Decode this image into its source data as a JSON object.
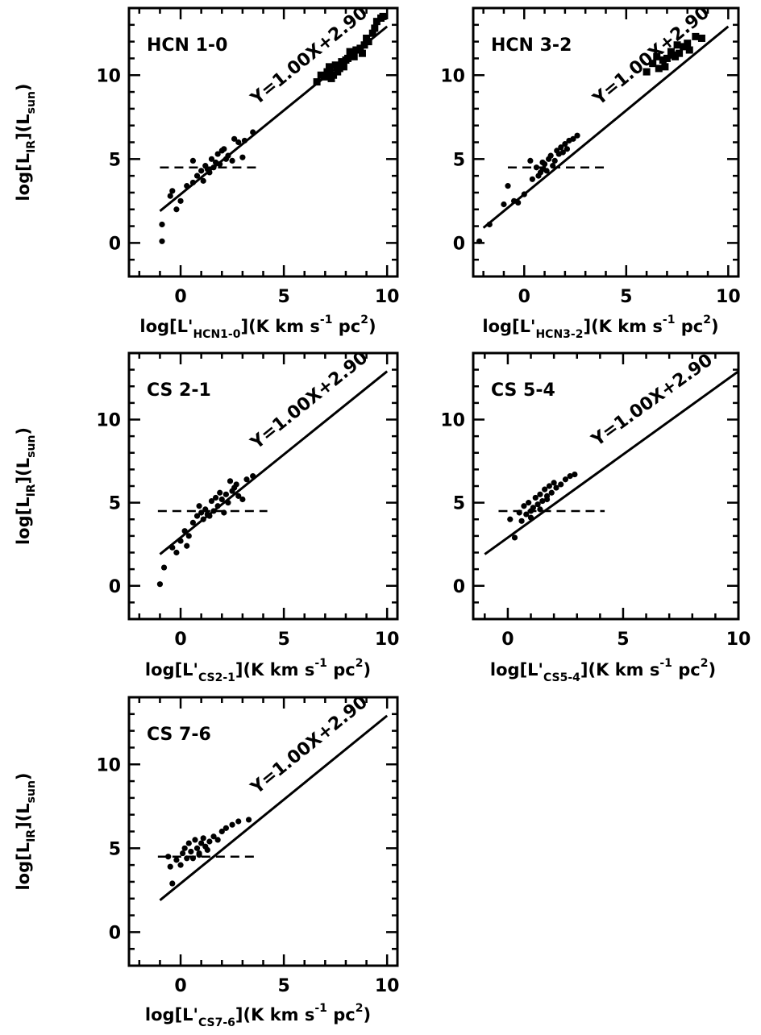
{
  "chart_data": [
    {
      "type": "scatter",
      "panel_label": "HCN 1-0",
      "equation": "Y=1.00X+2.90",
      "xlabel": {
        "pre": "log[L'",
        "sub": "HCN1-0",
        "post": "](K km s",
        "sup1": "-1",
        "mid": " pc",
        "sup2": "2",
        "end": ")"
      },
      "ylabel": {
        "pre": "log[L",
        "sub1": "IR",
        "mid": "](L",
        "sub2": "sun",
        "end": ")"
      },
      "xlim": [
        -2.5,
        10.5
      ],
      "ylim": [
        -2,
        14
      ],
      "xticks": [
        "0",
        "5",
        "10"
      ],
      "yticks": [
        "0",
        "5",
        "10"
      ],
      "fit": {
        "slope": 1.0,
        "intercept": 2.9,
        "x_range": [
          -1,
          10
        ]
      },
      "threshold": {
        "y": 4.5,
        "x_range": [
          -1,
          3.7
        ]
      },
      "series": [
        {
          "marker": "circle",
          "points": [
            [
              -0.9,
              0.1
            ],
            [
              -0.9,
              1.1
            ],
            [
              -0.5,
              2.8
            ],
            [
              -0.4,
              3.1
            ],
            [
              -0.2,
              2.0
            ],
            [
              0,
              2.5
            ],
            [
              0.3,
              3.4
            ],
            [
              0.6,
              3.6
            ],
            [
              0.8,
              4.0
            ],
            [
              1.0,
              4.3
            ],
            [
              1.1,
              3.7
            ],
            [
              1.2,
              4.6
            ],
            [
              1.4,
              4.2
            ],
            [
              1.5,
              5.0
            ],
            [
              1.6,
              4.5
            ],
            [
              1.7,
              4.8
            ],
            [
              1.8,
              5.3
            ],
            [
              1.9,
              4.7
            ],
            [
              2.0,
              5.5
            ],
            [
              2.2,
              5.0
            ],
            [
              2.3,
              5.2
            ],
            [
              2.5,
              4.9
            ],
            [
              2.6,
              6.2
            ],
            [
              2.8,
              6.0
            ],
            [
              3.0,
              5.1
            ],
            [
              3.1,
              6.1
            ],
            [
              3.5,
              6.6
            ],
            [
              0.6,
              4.9
            ],
            [
              1.3,
              4.4
            ],
            [
              2.1,
              5.6
            ]
          ]
        },
        {
          "marker": "square",
          "points": [
            [
              6.6,
              9.6
            ],
            [
              6.8,
              10.0
            ],
            [
              7.0,
              9.9
            ],
            [
              7.1,
              10.2
            ],
            [
              7.2,
              10.5
            ],
            [
              7.3,
              9.8
            ],
            [
              7.4,
              10.0
            ],
            [
              7.5,
              10.6
            ],
            [
              7.6,
              10.2
            ],
            [
              7.7,
              10.4
            ],
            [
              7.8,
              10.8
            ],
            [
              7.9,
              10.5
            ],
            [
              8.0,
              10.9
            ],
            [
              8.1,
              11.0
            ],
            [
              8.3,
              11.2
            ],
            [
              8.4,
              11.1
            ],
            [
              8.5,
              11.5
            ],
            [
              8.7,
              11.6
            ],
            [
              8.9,
              11.8
            ],
            [
              9.0,
              12.2
            ],
            [
              9.1,
              12.0
            ],
            [
              9.3,
              12.5
            ],
            [
              9.4,
              12.8
            ],
            [
              9.5,
              13.2
            ],
            [
              9.7,
              13.4
            ],
            [
              9.8,
              13.5
            ],
            [
              8.2,
              11.4
            ],
            [
              7.2,
              10.3
            ],
            [
              8.8,
              11.3
            ]
          ]
        }
      ]
    },
    {
      "type": "scatter",
      "panel_label": "HCN 3-2",
      "equation": "Y=1.00X+2.90",
      "xlabel": {
        "pre": "log[L'",
        "sub": "HCN3-2",
        "post": "](K km s",
        "sup1": "-1",
        "mid": " pc",
        "sup2": "2",
        "end": ")"
      },
      "ylabel": null,
      "xlim": [
        -2.5,
        10.5
      ],
      "ylim": [
        -2,
        14
      ],
      "xticks": [
        "0",
        "5",
        "10"
      ],
      "yticks": [
        "0",
        "5",
        "10"
      ],
      "fit": {
        "slope": 1.0,
        "intercept": 2.9,
        "x_range": [
          -2,
          10
        ]
      },
      "threshold": {
        "y": 4.5,
        "x_range": [
          -0.8,
          4.1
        ]
      },
      "series": [
        {
          "marker": "circle",
          "points": [
            [
              -2.2,
              0.1
            ],
            [
              -1.7,
              1.1
            ],
            [
              -1.0,
              2.3
            ],
            [
              -0.8,
              3.4
            ],
            [
              -0.5,
              2.5
            ],
            [
              -0.3,
              2.4
            ],
            [
              0,
              2.9
            ],
            [
              0.4,
              3.8
            ],
            [
              0.6,
              4.5
            ],
            [
              0.7,
              4.0
            ],
            [
              0.8,
              4.2
            ],
            [
              0.9,
              4.4
            ],
            [
              1.0,
              4.7
            ],
            [
              1.1,
              4.3
            ],
            [
              1.2,
              5.0
            ],
            [
              1.3,
              5.2
            ],
            [
              1.5,
              4.9
            ],
            [
              1.6,
              5.5
            ],
            [
              1.7,
              5.3
            ],
            [
              1.8,
              5.7
            ],
            [
              2.0,
              5.9
            ],
            [
              2.1,
              5.6
            ],
            [
              2.2,
              6.1
            ],
            [
              2.4,
              6.2
            ],
            [
              2.6,
              6.4
            ],
            [
              0.3,
              4.9
            ],
            [
              1.4,
              4.6
            ],
            [
              1.9,
              5.4
            ],
            [
              0.9,
              4.8
            ]
          ]
        },
        {
          "marker": "square",
          "points": [
            [
              6.0,
              10.2
            ],
            [
              6.3,
              10.7
            ],
            [
              6.5,
              11.1
            ],
            [
              6.6,
              10.4
            ],
            [
              6.8,
              10.9
            ],
            [
              6.9,
              10.5
            ],
            [
              7.0,
              11.0
            ],
            [
              7.2,
              11.4
            ],
            [
              7.3,
              11.2
            ],
            [
              7.5,
              11.8
            ],
            [
              7.6,
              11.3
            ],
            [
              7.8,
              11.7
            ],
            [
              8.0,
              11.9
            ],
            [
              8.1,
              11.5
            ],
            [
              8.4,
              12.3
            ],
            [
              8.7,
              12.2
            ],
            [
              7.4,
              11.1
            ]
          ]
        }
      ]
    },
    {
      "type": "scatter",
      "panel_label": "CS 2-1",
      "equation": "Y=1.00X+2.90",
      "xlabel": {
        "pre": "log[L'",
        "sub": "CS2-1",
        "post": "](K km s",
        "sup1": "-1",
        "mid": " pc",
        "sup2": "2",
        "end": ")"
      },
      "ylabel": {
        "pre": "log[L",
        "sub1": "IR",
        "mid": "](L",
        "sub2": "sun",
        "end": ")"
      },
      "xlim": [
        -2.5,
        10.5
      ],
      "ylim": [
        -2,
        14
      ],
      "xticks": [
        "0",
        "5",
        "10"
      ],
      "yticks": [
        "0",
        "5",
        "10"
      ],
      "fit": {
        "slope": 1.0,
        "intercept": 2.9,
        "x_range": [
          -1,
          10
        ]
      },
      "threshold": {
        "y": 4.5,
        "x_range": [
          -1.1,
          4.2
        ]
      },
      "series": [
        {
          "marker": "circle",
          "points": [
            [
              -1.0,
              0.1
            ],
            [
              -0.8,
              1.1
            ],
            [
              -0.4,
              2.3
            ],
            [
              -0.2,
              2.0
            ],
            [
              0,
              2.7
            ],
            [
              0.2,
              3.3
            ],
            [
              0.3,
              2.4
            ],
            [
              0.4,
              3.0
            ],
            [
              0.6,
              3.8
            ],
            [
              0.8,
              4.2
            ],
            [
              0.9,
              4.8
            ],
            [
              1.0,
              4.4
            ],
            [
              1.1,
              4.0
            ],
            [
              1.2,
              4.6
            ],
            [
              1.4,
              4.2
            ],
            [
              1.5,
              5.1
            ],
            [
              1.6,
              4.5
            ],
            [
              1.7,
              5.3
            ],
            [
              1.8,
              4.8
            ],
            [
              2.0,
              5.2
            ],
            [
              2.1,
              4.4
            ],
            [
              2.2,
              5.5
            ],
            [
              2.3,
              5.0
            ],
            [
              2.4,
              6.3
            ],
            [
              2.6,
              5.9
            ],
            [
              2.7,
              6.1
            ],
            [
              2.8,
              5.4
            ],
            [
              3.0,
              5.2
            ],
            [
              3.2,
              6.4
            ],
            [
              3.5,
              6.6
            ],
            [
              1.3,
              4.3
            ],
            [
              1.9,
              5.6
            ],
            [
              2.5,
              5.7
            ]
          ]
        }
      ]
    },
    {
      "type": "scatter",
      "panel_label": "CS 5-4",
      "equation": "Y=1.00X+2.90",
      "xlabel": {
        "pre": "log[L'",
        "sub": "CS5-4",
        "post": "](K km s",
        "sup1": "-1",
        "mid": " pc",
        "sup2": "2",
        "end": ")"
      },
      "ylabel": null,
      "xlim": [
        -1.5,
        10
      ],
      "ylim": [
        -2,
        14
      ],
      "xticks": [
        "0",
        "5",
        "10"
      ],
      "yticks": [
        "0",
        "5",
        "10"
      ],
      "fit": {
        "slope": 1.0,
        "intercept": 2.9,
        "x_range": [
          -1,
          10
        ]
      },
      "threshold": {
        "y": 4.5,
        "x_range": [
          -0.4,
          4.2
        ]
      },
      "series": [
        {
          "marker": "circle",
          "points": [
            [
              0.1,
              4.0
            ],
            [
              0.3,
              2.9
            ],
            [
              0.5,
              4.4
            ],
            [
              0.6,
              3.9
            ],
            [
              0.7,
              4.8
            ],
            [
              0.8,
              4.3
            ],
            [
              0.9,
              5.0
            ],
            [
              1.0,
              4.5
            ],
            [
              1.1,
              4.7
            ],
            [
              1.2,
              5.3
            ],
            [
              1.3,
              4.9
            ],
            [
              1.4,
              5.5
            ],
            [
              1.5,
              5.1
            ],
            [
              1.6,
              5.8
            ],
            [
              1.7,
              5.4
            ],
            [
              1.8,
              6.0
            ],
            [
              1.9,
              5.6
            ],
            [
              2.0,
              6.2
            ],
            [
              2.1,
              5.9
            ],
            [
              2.3,
              6.1
            ],
            [
              2.5,
              6.4
            ],
            [
              2.7,
              6.6
            ],
            [
              2.9,
              6.7
            ],
            [
              1.0,
              4.1
            ],
            [
              1.4,
              4.6
            ],
            [
              1.7,
              5.2
            ]
          ]
        }
      ]
    },
    {
      "type": "scatter",
      "panel_label": "CS 7-6",
      "equation": "Y=1.00X+2.90",
      "xlabel": {
        "pre": "log[L'",
        "sub": "CS7-6",
        "post": "](K km s",
        "sup1": "-1",
        "mid": " pc",
        "sup2": "2",
        "end": ")"
      },
      "ylabel": {
        "pre": "log[L",
        "sub1": "IR",
        "mid": "](L",
        "sub2": "sun",
        "end": ")"
      },
      "xlim": [
        -2.5,
        10.5
      ],
      "ylim": [
        -2,
        14
      ],
      "xticks": [
        "0",
        "5",
        "10"
      ],
      "yticks": [
        "0",
        "5",
        "10"
      ],
      "fit": {
        "slope": 1.0,
        "intercept": 2.9,
        "x_range": [
          -1,
          10
        ]
      },
      "threshold": {
        "y": 4.5,
        "x_range": [
          -1.1,
          3.6
        ]
      },
      "series": [
        {
          "marker": "circle",
          "points": [
            [
              -0.6,
              4.5
            ],
            [
              -0.5,
              3.9
            ],
            [
              -0.4,
              2.9
            ],
            [
              -0.2,
              4.3
            ],
            [
              0,
              4.0
            ],
            [
              0.1,
              4.7
            ],
            [
              0.2,
              5.0
            ],
            [
              0.3,
              4.4
            ],
            [
              0.4,
              5.3
            ],
            [
              0.5,
              4.8
            ],
            [
              0.6,
              4.4
            ],
            [
              0.7,
              5.5
            ],
            [
              0.8,
              5.0
            ],
            [
              0.9,
              4.6
            ],
            [
              1.0,
              5.3
            ],
            [
              1.1,
              5.6
            ],
            [
              1.2,
              5.1
            ],
            [
              1.4,
              5.4
            ],
            [
              1.6,
              5.7
            ],
            [
              1.8,
              5.5
            ],
            [
              2.0,
              6.0
            ],
            [
              2.2,
              6.2
            ],
            [
              2.5,
              6.4
            ],
            [
              2.8,
              6.6
            ],
            [
              3.3,
              6.7
            ],
            [
              0.9,
              4.7
            ],
            [
              1.3,
              4.9
            ]
          ]
        }
      ]
    }
  ]
}
